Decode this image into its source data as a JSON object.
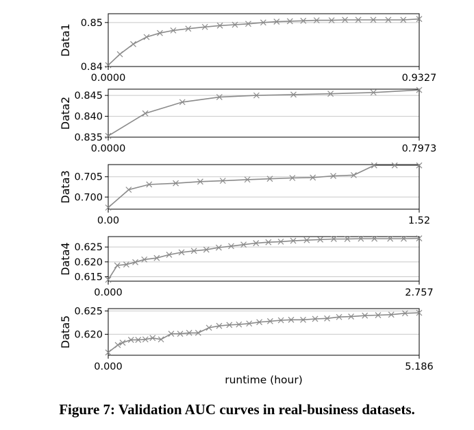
{
  "caption": "Figure 7: Validation AUC curves in real-business datasets.",
  "chart_data": {
    "type": "line",
    "xlabel": "runtime (hour)",
    "style": {
      "line_color": "#8a8a8a",
      "marker": "x",
      "grid": "horizontal",
      "grid_color": "#c8c8c8"
    },
    "panels": [
      {
        "ylabel": "Data1",
        "ylim": [
          0.84,
          0.852
        ],
        "yticks": [
          0.84,
          0.85
        ],
        "ytick_labels": [
          "0.84",
          "0.85"
        ],
        "xlim": [
          0,
          0.9327
        ],
        "xtick_labels": [
          "0.0000",
          "0.9327"
        ],
        "x": [
          0.0,
          0.035,
          0.075,
          0.115,
          0.155,
          0.195,
          0.24,
          0.29,
          0.335,
          0.38,
          0.42,
          0.465,
          0.505,
          0.545,
          0.585,
          0.625,
          0.67,
          0.71,
          0.75,
          0.795,
          0.84,
          0.885,
          0.9327
        ],
        "y": [
          0.8403,
          0.8428,
          0.8451,
          0.8467,
          0.8476,
          0.8482,
          0.8486,
          0.849,
          0.8493,
          0.8495,
          0.8497,
          0.85,
          0.8502,
          0.8503,
          0.8504,
          0.8505,
          0.8505,
          0.8506,
          0.8506,
          0.8506,
          0.8506,
          0.8506,
          0.8508
        ]
      },
      {
        "ylabel": "Data2",
        "ylim": [
          0.835,
          0.8465
        ],
        "yticks": [
          0.835,
          0.84,
          0.845
        ],
        "ytick_labels": [
          "0.835",
          "0.840",
          "0.845"
        ],
        "xlim": [
          0,
          0.7973
        ],
        "xtick_labels": [
          "0.0000",
          "0.7973"
        ],
        "x": [
          0.0,
          0.095,
          0.19,
          0.285,
          0.38,
          0.475,
          0.57,
          0.68,
          0.7973
        ],
        "y": [
          0.8353,
          0.8407,
          0.8434,
          0.8446,
          0.845,
          0.8452,
          0.8454,
          0.8457,
          0.8463
        ]
      },
      {
        "ylabel": "Data3",
        "ylim": [
          0.697,
          0.708
        ],
        "yticks": [
          0.7,
          0.705
        ],
        "ytick_labels": [
          "0.700",
          "0.705"
        ],
        "xlim": [
          0,
          1.52
        ],
        "xtick_labels": [
          "0.00",
          "1.52"
        ],
        "x": [
          0.0,
          0.1,
          0.2,
          0.33,
          0.45,
          0.56,
          0.68,
          0.79,
          0.9,
          1.0,
          1.1,
          1.2,
          1.3,
          1.4,
          1.52
        ],
        "y": [
          0.6974,
          0.7018,
          0.7031,
          0.7034,
          0.7038,
          0.704,
          0.7043,
          0.7045,
          0.7047,
          0.7048,
          0.7052,
          0.7054,
          0.7078,
          0.7078,
          0.7078
        ]
      },
      {
        "ylabel": "Data4",
        "ylim": [
          0.6135,
          0.6285
        ],
        "yticks": [
          0.615,
          0.62,
          0.625
        ],
        "ytick_labels": [
          "0.615",
          "0.620",
          "0.625"
        ],
        "xlim": [
          0,
          2.757
        ],
        "xtick_labels": [
          "0.000",
          "2.757"
        ],
        "x": [
          0.0,
          0.08,
          0.16,
          0.24,
          0.32,
          0.43,
          0.54,
          0.65,
          0.76,
          0.87,
          0.98,
          1.09,
          1.2,
          1.31,
          1.42,
          1.53,
          1.64,
          1.76,
          1.88,
          2.0,
          2.12,
          2.24,
          2.36,
          2.5,
          2.62,
          2.757
        ],
        "y": [
          0.614,
          0.6188,
          0.6191,
          0.6199,
          0.6208,
          0.6213,
          0.6224,
          0.6232,
          0.6237,
          0.6241,
          0.6248,
          0.6253,
          0.6258,
          0.6263,
          0.6266,
          0.6268,
          0.6271,
          0.6273,
          0.6275,
          0.6277,
          0.6277,
          0.6278,
          0.6278,
          0.6278,
          0.6278,
          0.6279
        ]
      },
      {
        "ylabel": "Data5",
        "ylim": [
          0.6155,
          0.6255
        ],
        "yticks": [
          0.62,
          0.625
        ],
        "ytick_labels": [
          "0.620",
          "0.625"
        ],
        "xlim": [
          0,
          5.186
        ],
        "xtick_labels": [
          "0.000",
          "5.186"
        ],
        "x": [
          0.0,
          0.16,
          0.24,
          0.38,
          0.5,
          0.62,
          0.74,
          0.88,
          1.05,
          1.2,
          1.35,
          1.5,
          1.68,
          1.85,
          2.02,
          2.18,
          2.35,
          2.52,
          2.7,
          2.88,
          3.05,
          3.25,
          3.45,
          3.65,
          3.85,
          4.05,
          4.28,
          4.5,
          4.72,
          4.95,
          5.186
        ],
        "y": [
          0.6161,
          0.6177,
          0.6182,
          0.6188,
          0.6188,
          0.6189,
          0.6192,
          0.6189,
          0.6201,
          0.6201,
          0.6203,
          0.6203,
          0.6214,
          0.6218,
          0.622,
          0.6221,
          0.6223,
          0.6226,
          0.6228,
          0.623,
          0.6231,
          0.6231,
          0.6233,
          0.6234,
          0.6237,
          0.6238,
          0.624,
          0.6241,
          0.6242,
          0.6245,
          0.6246
        ]
      }
    ]
  }
}
